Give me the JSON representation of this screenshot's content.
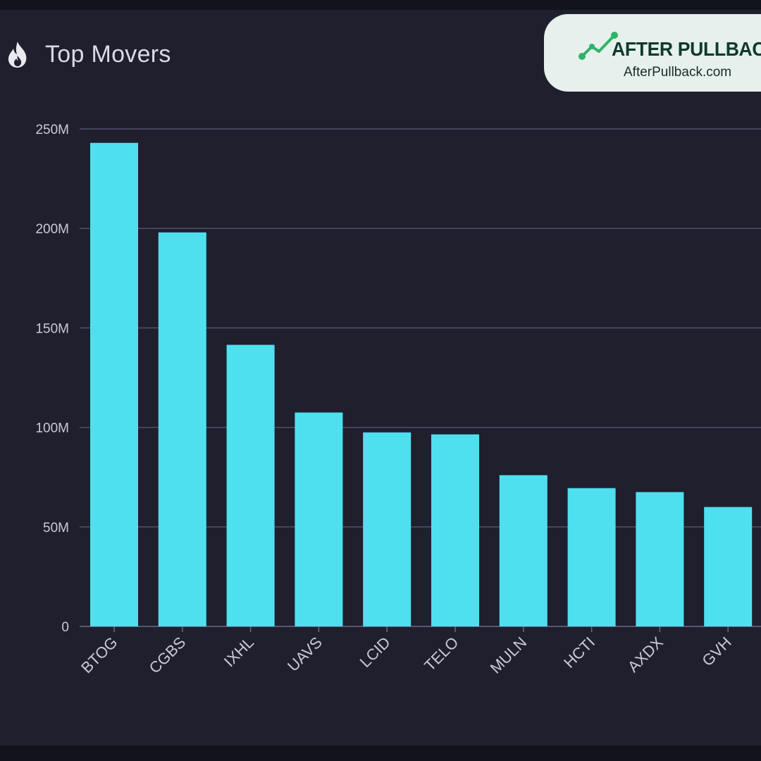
{
  "header": {
    "title": "Top Movers",
    "icon": "flame-icon"
  },
  "logo": {
    "name": "AFTER PULLBACK",
    "url": "AfterPullback.com",
    "icon": "trend-line-icon"
  },
  "colors": {
    "background": "#1f1f2e",
    "bar": "#4fe0f0",
    "grid": "#50506a",
    "axis_text": "#c9cbd4",
    "logo_bg": "#e6f0ec",
    "logo_green": "#2fb36a"
  },
  "chart_data": {
    "type": "bar",
    "title": "",
    "xlabel": "",
    "ylabel": "",
    "categories": [
      "BTOG",
      "CGBS",
      "IXHL",
      "UAVS",
      "LCID",
      "TELO",
      "MULN",
      "HCTI",
      "AXDX",
      "GVH"
    ],
    "values": [
      243,
      198,
      141.5,
      107.5,
      97.5,
      96.5,
      76,
      69.5,
      67.5,
      60
    ],
    "value_unit": "M",
    "ylim": [
      0,
      250
    ],
    "yticks": [
      0,
      50,
      100,
      150,
      200,
      250
    ],
    "ytick_labels": [
      "0",
      "50M",
      "100M",
      "150M",
      "200M",
      "250M"
    ],
    "grid": true,
    "legend": "none"
  }
}
